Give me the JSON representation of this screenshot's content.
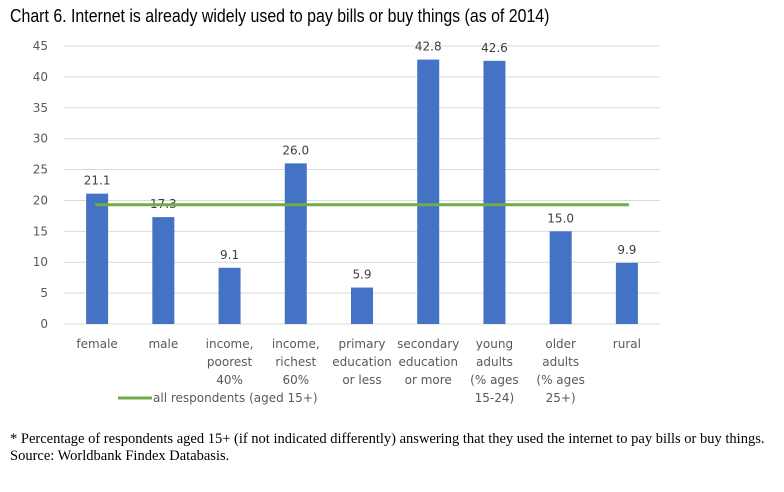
{
  "title": "Chart 6. Internet is already widely used to pay bills or buy things (as of 2014)",
  "chart_data": {
    "type": "bar",
    "categories": [
      [
        "female"
      ],
      [
        "male"
      ],
      [
        "income,",
        "poorest",
        "40%"
      ],
      [
        "income,",
        "richest",
        "60%"
      ],
      [
        "primary",
        "education",
        "or less"
      ],
      [
        "secondary",
        "education",
        "or more"
      ],
      [
        "young",
        "adults",
        "(% ages",
        "15-24)"
      ],
      [
        "older",
        "adults",
        "(% ages",
        "25+)"
      ],
      [
        "rural"
      ]
    ],
    "values": [
      21.1,
      17.3,
      9.1,
      26.0,
      5.9,
      42.8,
      42.6,
      15.0,
      9.9
    ],
    "data_labels": [
      "21.1",
      "17.3",
      "9.1",
      "26.0",
      "5.9",
      "42.8",
      "42.6",
      "15.0",
      "9.9"
    ],
    "reference_line": {
      "name": "all respondents (aged 15+)",
      "value": 19.3
    },
    "ylim": [
      0,
      45
    ],
    "yticks": [
      0,
      5,
      10,
      15,
      20,
      25,
      30,
      35,
      40,
      45
    ],
    "grid": true,
    "legend": "bottom-left",
    "colors": {
      "bar": "#4472C4",
      "line": "#70AD47",
      "grid": "#D9D9D9"
    }
  },
  "notes": [
    "* Percentage of respondents aged 15+ (if not indicated differently) answering that they used the internet to pay bills or buy things.",
    "Source: Worldbank Findex Databasis."
  ]
}
